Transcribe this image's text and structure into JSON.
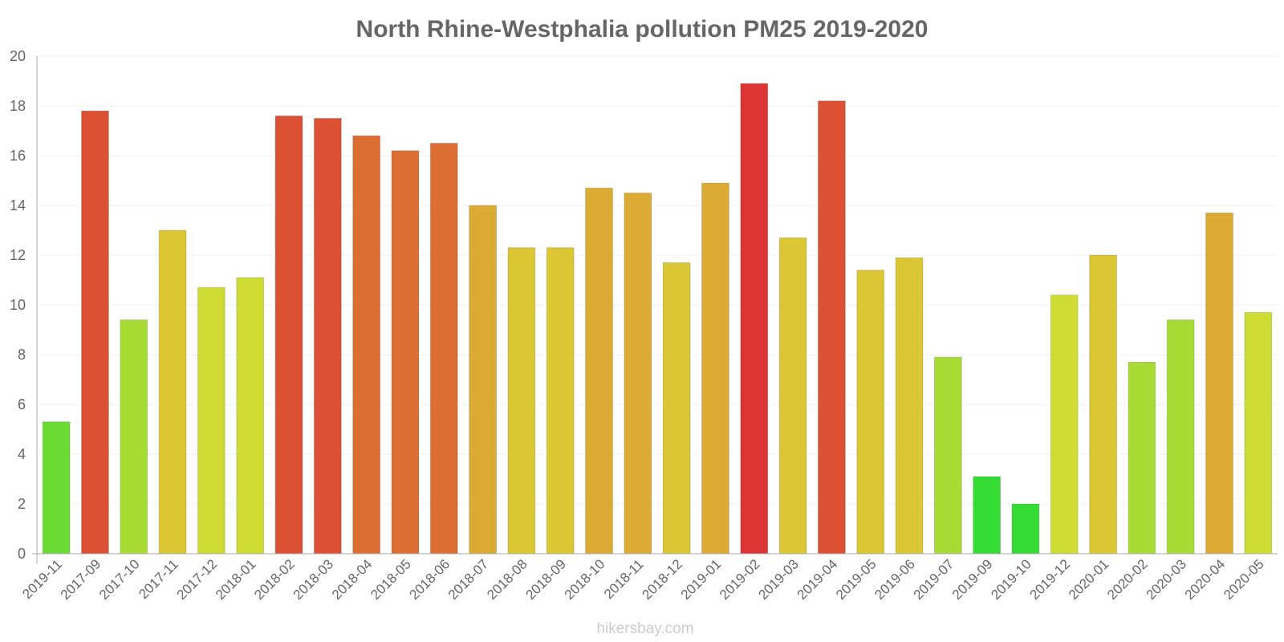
{
  "chart_data": {
    "type": "bar",
    "title": "North Rhine-Westphalia pollution PM25 2019-2020",
    "xlabel": "",
    "ylabel": "",
    "ylim": [
      0,
      20
    ],
    "yticks": [
      0,
      2,
      4,
      6,
      8,
      10,
      12,
      14,
      16,
      18,
      20
    ],
    "grid": true,
    "categories": [
      "2019-11",
      "2017-09",
      "2017-10",
      "2017-11",
      "2017-12",
      "2018-01",
      "2018-02",
      "2018-03",
      "2018-04",
      "2018-05",
      "2018-06",
      "2018-07",
      "2018-08",
      "2018-09",
      "2018-10",
      "2018-11",
      "2018-12",
      "2019-01",
      "2019-02",
      "2019-03",
      "2019-04",
      "2019-05",
      "2019-06",
      "2019-07",
      "2019-09",
      "2019-10",
      "2019-12",
      "2020-01",
      "2020-02",
      "2020-03",
      "2020-04",
      "2020-05"
    ],
    "values": [
      5.3,
      17.8,
      9.4,
      13,
      10.7,
      11.1,
      17.6,
      17.5,
      16.8,
      16.2,
      16.5,
      14,
      12.3,
      12.3,
      14.7,
      14.5,
      11.7,
      14.9,
      18.9,
      12.7,
      18.2,
      11.4,
      11.9,
      7.9,
      3.1,
      2,
      10.4,
      12,
      7.7,
      9.4,
      13.7,
      9.7
    ],
    "colors": [
      "#6bdb34",
      "#dc5033",
      "#a8dc34",
      "#dbc634",
      "#cedc34",
      "#cedc34",
      "#dc5033",
      "#dc5033",
      "#dc6d33",
      "#dc6d33",
      "#dc6d33",
      "#dbab34",
      "#dbc634",
      "#dbc634",
      "#dbab34",
      "#dbab34",
      "#dbc634",
      "#dbab34",
      "#dc3533",
      "#dbc634",
      "#dc5033",
      "#dbc634",
      "#dbc634",
      "#a8dc34",
      "#34dc34",
      "#34dc34",
      "#cedc34",
      "#dbc634",
      "#a8dc34",
      "#a8dc34",
      "#dbab34",
      "#cedc34"
    ]
  },
  "credit": "hikersbay.com"
}
